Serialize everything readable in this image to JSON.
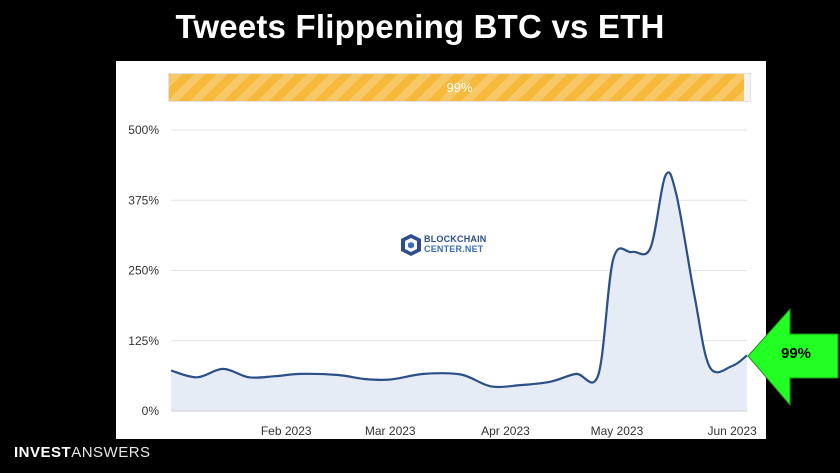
{
  "title": "Tweets Flippening BTC vs ETH",
  "progress": {
    "value": 0.99,
    "label": "99%",
    "color": "#f6b93b"
  },
  "watermark": {
    "line1": "BLOCKCHAIN",
    "line2": "CENTER.NET"
  },
  "callout": {
    "label": "99%",
    "color": "#22ff22"
  },
  "brand": {
    "bold": "INVEST",
    "light": "ANSWERS"
  },
  "chart_data": {
    "type": "area",
    "title": "",
    "xlabel": "",
    "ylabel": "",
    "ylim": [
      0,
      500
    ],
    "yticks": [
      0,
      125,
      250,
      375,
      500
    ],
    "ytick_labels": [
      "0%",
      "125%",
      "250%",
      "375%",
      "500%"
    ],
    "xlim": [
      "2023-01-01",
      "2023-06-05"
    ],
    "xticks": [
      "2023-02-01",
      "2023-03-01",
      "2023-04-01",
      "2023-05-01",
      "2023-06-01"
    ],
    "xtick_labels": [
      "Feb 2023",
      "Mar 2023",
      "Apr 2023",
      "May 2023",
      "Jun 2023"
    ],
    "grid": true,
    "line_color": "#2b4f86",
    "fill_color": "#e6ecf5",
    "series": [
      {
        "values": [
          {
            "x": "2023-01-01",
            "y": 72
          },
          {
            "x": "2023-01-08",
            "y": 60
          },
          {
            "x": "2023-01-15",
            "y": 75
          },
          {
            "x": "2023-01-22",
            "y": 60
          },
          {
            "x": "2023-01-29",
            "y": 62
          },
          {
            "x": "2023-02-05",
            "y": 66
          },
          {
            "x": "2023-02-15",
            "y": 64
          },
          {
            "x": "2023-02-22",
            "y": 57
          },
          {
            "x": "2023-03-01",
            "y": 56
          },
          {
            "x": "2023-03-10",
            "y": 66
          },
          {
            "x": "2023-03-20",
            "y": 65
          },
          {
            "x": "2023-03-28",
            "y": 44
          },
          {
            "x": "2023-04-05",
            "y": 46
          },
          {
            "x": "2023-04-13",
            "y": 52
          },
          {
            "x": "2023-04-20",
            "y": 66
          },
          {
            "x": "2023-04-26",
            "y": 65
          },
          {
            "x": "2023-04-30",
            "y": 270
          },
          {
            "x": "2023-05-05",
            "y": 283
          },
          {
            "x": "2023-05-10",
            "y": 290
          },
          {
            "x": "2023-05-14",
            "y": 418
          },
          {
            "x": "2023-05-17",
            "y": 385
          },
          {
            "x": "2023-05-22",
            "y": 200
          },
          {
            "x": "2023-05-26",
            "y": 78
          },
          {
            "x": "2023-06-01",
            "y": 80
          },
          {
            "x": "2023-06-05",
            "y": 99
          }
        ]
      }
    ]
  }
}
